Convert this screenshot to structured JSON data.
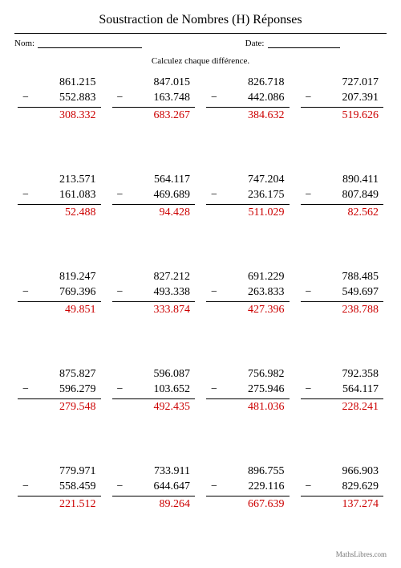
{
  "title": "Soustraction de Nombres (H) Réponses",
  "name_label": "Nom:",
  "date_label": "Date:",
  "instruction": "Calculez chaque différence.",
  "minus_sign": "−",
  "answer_color": "#cc0000",
  "problems": [
    {
      "minuend": "861.215",
      "subtrahend": "552.883",
      "answer": "308.332"
    },
    {
      "minuend": "847.015",
      "subtrahend": "163.748",
      "answer": "683.267"
    },
    {
      "minuend": "826.718",
      "subtrahend": "442.086",
      "answer": "384.632"
    },
    {
      "minuend": "727.017",
      "subtrahend": "207.391",
      "answer": "519.626"
    },
    {
      "minuend": "213.571",
      "subtrahend": "161.083",
      "answer": "52.488"
    },
    {
      "minuend": "564.117",
      "subtrahend": "469.689",
      "answer": "94.428"
    },
    {
      "minuend": "747.204",
      "subtrahend": "236.175",
      "answer": "511.029"
    },
    {
      "minuend": "890.411",
      "subtrahend": "807.849",
      "answer": "82.562"
    },
    {
      "minuend": "819.247",
      "subtrahend": "769.396",
      "answer": "49.851"
    },
    {
      "minuend": "827.212",
      "subtrahend": "493.338",
      "answer": "333.874"
    },
    {
      "minuend": "691.229",
      "subtrahend": "263.833",
      "answer": "427.396"
    },
    {
      "minuend": "788.485",
      "subtrahend": "549.697",
      "answer": "238.788"
    },
    {
      "minuend": "875.827",
      "subtrahend": "596.279",
      "answer": "279.548"
    },
    {
      "minuend": "596.087",
      "subtrahend": "103.652",
      "answer": "492.435"
    },
    {
      "minuend": "756.982",
      "subtrahend": "275.946",
      "answer": "481.036"
    },
    {
      "minuend": "792.358",
      "subtrahend": "564.117",
      "answer": "228.241"
    },
    {
      "minuend": "779.971",
      "subtrahend": "558.459",
      "answer": "221.512"
    },
    {
      "minuend": "733.911",
      "subtrahend": "644.647",
      "answer": "89.264"
    },
    {
      "minuend": "896.755",
      "subtrahend": "229.116",
      "answer": "667.639"
    },
    {
      "minuend": "966.903",
      "subtrahend": "829.629",
      "answer": "137.274"
    }
  ],
  "footer_left": "",
  "footer_right": "MathsLibres.com"
}
